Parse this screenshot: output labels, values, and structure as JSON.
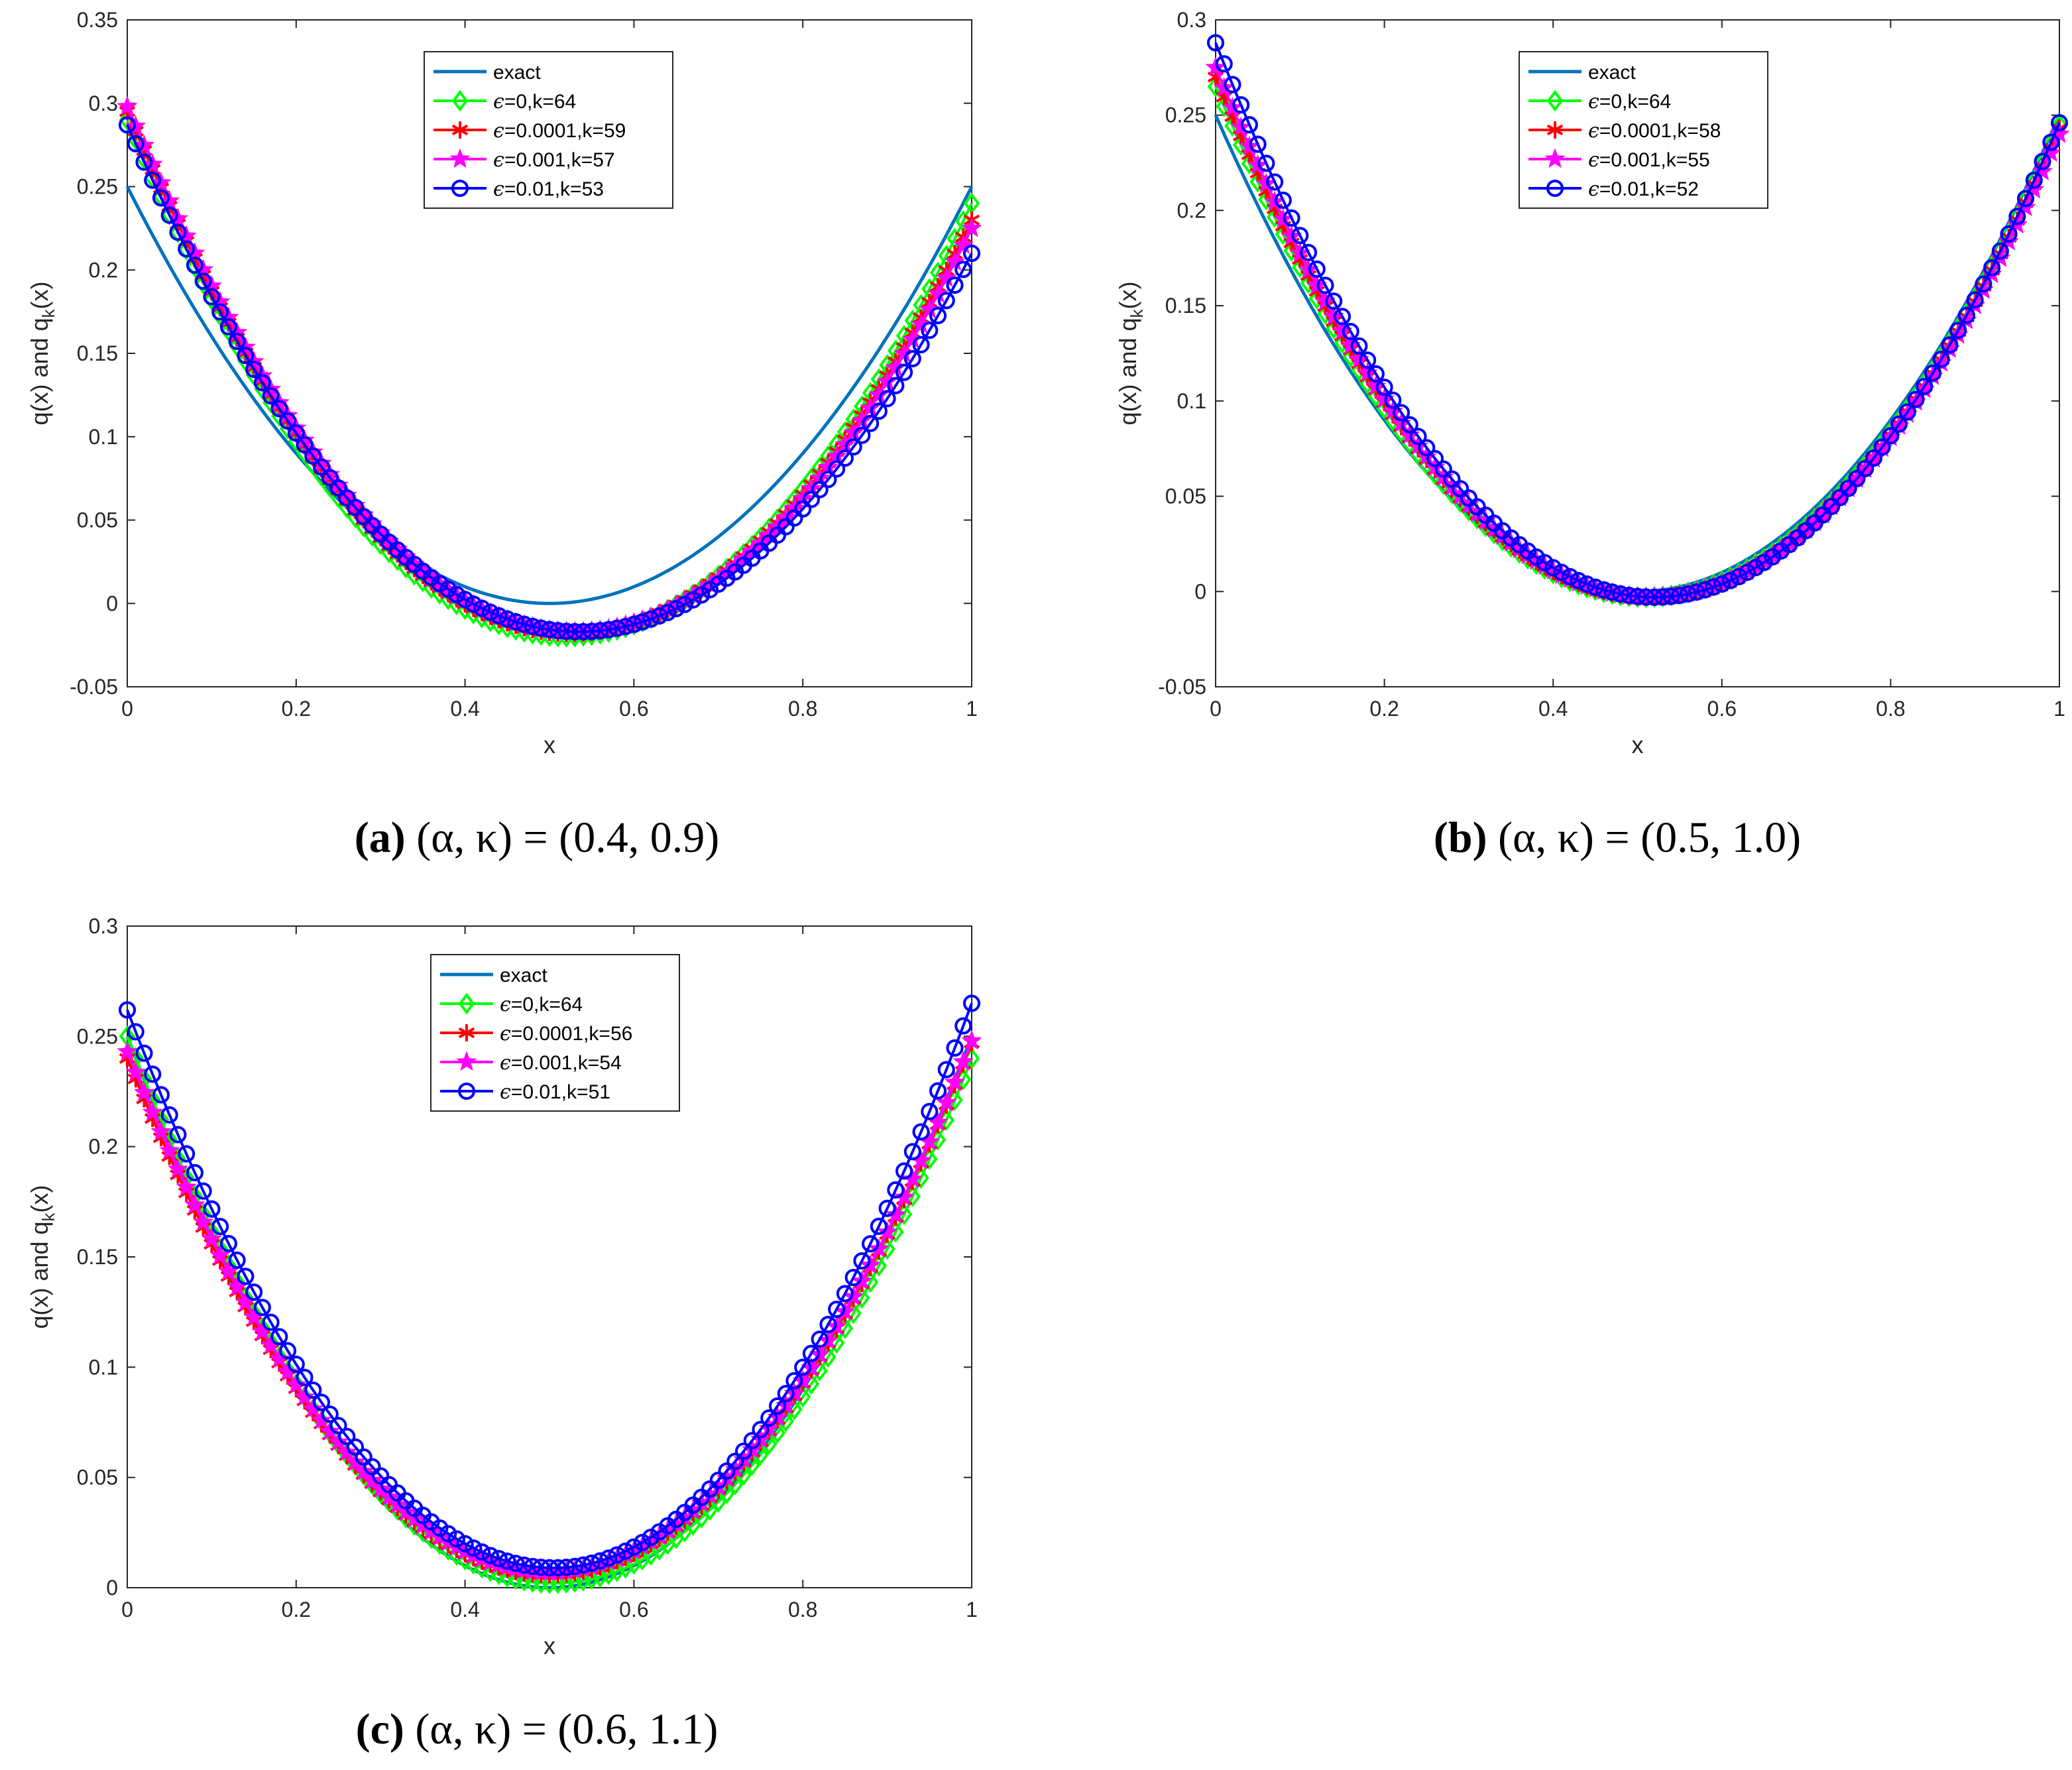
{
  "colors": {
    "exact": "#0072BD",
    "eps0": "#00FF00",
    "eps0001": "#FF0000",
    "eps001": "#FF00FF",
    "eps01": "#0000FF",
    "axis": "#262626"
  },
  "chart_data": [
    {
      "type": "line",
      "panel_id": "a",
      "caption": {
        "letter": "(a)",
        "text": " (α, κ) = (0.4, 0.9)"
      },
      "xlabel": "x",
      "ylabel": "q(x) and q",
      "ylabel_sub": "k",
      "ylabel_tail": "(x)",
      "xlim": [
        0,
        1
      ],
      "ylim": [
        -0.05,
        0.35
      ],
      "xticks": [
        0,
        0.2,
        0.4,
        0.6,
        0.8,
        1
      ],
      "xtick_labels": [
        "0",
        "0.2",
        "0.4",
        "0.6",
        "0.8",
        "1"
      ],
      "yticks": [
        -0.05,
        0,
        0.05,
        0.1,
        0.15,
        0.2,
        0.25,
        0.3,
        0.35
      ],
      "ytick_labels": [
        "-0.05",
        "0",
        "0.05",
        "0.1",
        "0.15",
        "0.2",
        "0.25",
        "0.3",
        "0.35"
      ],
      "legend_position": "top-center",
      "series": [
        {
          "name": "exact",
          "color_key": "exact",
          "marker": "none",
          "model": {
            "a": 0.25,
            "m": 0.5,
            "b": 0.25,
            "c": 0.0
          }
        },
        {
          "name": "=0,k=64",
          "eps_symbol": "ϵ",
          "color_key": "eps0",
          "marker": "diamond",
          "model": {
            "a": 0.29,
            "m": 0.52,
            "b": 0.24,
            "c": -0.02
          }
        },
        {
          "name": "=0.0001,k=59",
          "eps_symbol": "ϵ",
          "color_key": "eps0001",
          "marker": "asterisk",
          "model": {
            "a": 0.295,
            "m": 0.525,
            "b": 0.23,
            "c": -0.018
          }
        },
        {
          "name": "=0.001,k=57",
          "eps_symbol": "ϵ",
          "color_key": "eps001",
          "marker": "star",
          "model": {
            "a": 0.298,
            "m": 0.53,
            "b": 0.225,
            "c": -0.017
          }
        },
        {
          "name": "=0.01,k=53",
          "eps_symbol": "ϵ",
          "color_key": "eps01",
          "marker": "circle",
          "model": {
            "a": 0.287,
            "m": 0.535,
            "b": 0.21,
            "c": -0.017
          }
        }
      ]
    },
    {
      "type": "line",
      "panel_id": "b",
      "caption": {
        "letter": "(b)",
        "text": " (α, κ) = (0.5, 1.0)"
      },
      "xlabel": "x",
      "ylabel": "q(x) and q",
      "ylabel_sub": "k",
      "ylabel_tail": "(x)",
      "xlim": [
        0,
        1
      ],
      "ylim": [
        -0.05,
        0.3
      ],
      "xticks": [
        0,
        0.2,
        0.4,
        0.6,
        0.8,
        1
      ],
      "xtick_labels": [
        "0",
        "0.2",
        "0.4",
        "0.6",
        "0.8",
        "1"
      ],
      "yticks": [
        -0.05,
        0,
        0.05,
        0.1,
        0.15,
        0.2,
        0.25,
        0.3
      ],
      "ytick_labels": [
        "-0.05",
        "0",
        "0.05",
        "0.1",
        "0.15",
        "0.2",
        "0.25",
        "0.3"
      ],
      "legend_position": "top-center",
      "series": [
        {
          "name": "exact",
          "color_key": "exact",
          "marker": "none",
          "model": {
            "a": 0.25,
            "m": 0.5,
            "b": 0.25,
            "c": 0.0
          }
        },
        {
          "name": "=0,k=64",
          "eps_symbol": "ϵ",
          "color_key": "eps0",
          "marker": "diamond",
          "model": {
            "a": 0.265,
            "m": 0.51,
            "b": 0.245,
            "c": -0.003
          }
        },
        {
          "name": "=0.0001,k=58",
          "eps_symbol": "ϵ",
          "color_key": "eps0001",
          "marker": "asterisk",
          "model": {
            "a": 0.27,
            "m": 0.515,
            "b": 0.243,
            "c": -0.003
          }
        },
        {
          "name": "=0.001,k=55",
          "eps_symbol": "ϵ",
          "color_key": "eps001",
          "marker": "star",
          "model": {
            "a": 0.275,
            "m": 0.515,
            "b": 0.24,
            "c": -0.003
          }
        },
        {
          "name": "=0.01,k=52",
          "eps_symbol": "ϵ",
          "color_key": "eps01",
          "marker": "circle",
          "model": {
            "a": 0.288,
            "m": 0.52,
            "b": 0.246,
            "c": -0.003
          }
        }
      ]
    },
    {
      "type": "line",
      "panel_id": "c",
      "caption": {
        "letter": "(c)",
        "text": " (α, κ) = (0.6, 1.1)"
      },
      "xlabel": "x",
      "ylabel": "q(x) and q",
      "ylabel_sub": "k",
      "ylabel_tail": "(x)",
      "xlim": [
        0,
        1
      ],
      "ylim": [
        0,
        0.3
      ],
      "xticks": [
        0,
        0.2,
        0.4,
        0.6,
        0.8,
        1
      ],
      "xtick_labels": [
        "0",
        "0.2",
        "0.4",
        "0.6",
        "0.8",
        "1"
      ],
      "yticks": [
        0,
        0.05,
        0.1,
        0.15,
        0.2,
        0.25,
        0.3
      ],
      "ytick_labels": [
        "0",
        "0.05",
        "0.1",
        "0.15",
        "0.2",
        "0.25",
        "0.3"
      ],
      "legend_position": "top-center",
      "series": [
        {
          "name": "exact",
          "color_key": "exact",
          "marker": "none",
          "model": {
            "a": 0.25,
            "m": 0.5,
            "b": 0.25,
            "c": 0.0
          }
        },
        {
          "name": "=0,k=64",
          "eps_symbol": "ϵ",
          "color_key": "eps0",
          "marker": "diamond",
          "model": {
            "a": 0.25,
            "m": 0.505,
            "b": 0.24,
            "c": 0.002
          }
        },
        {
          "name": "=0.0001,k=56",
          "eps_symbol": "ϵ",
          "color_key": "eps0001",
          "marker": "asterisk",
          "model": {
            "a": 0.24,
            "m": 0.5,
            "b": 0.247,
            "c": 0.006
          }
        },
        {
          "name": "=0.001,k=54",
          "eps_symbol": "ϵ",
          "color_key": "eps001",
          "marker": "star",
          "model": {
            "a": 0.243,
            "m": 0.5,
            "b": 0.248,
            "c": 0.007
          }
        },
        {
          "name": "=0.01,k=51",
          "eps_symbol": "ϵ",
          "color_key": "eps01",
          "marker": "circle",
          "model": {
            "a": 0.262,
            "m": 0.505,
            "b": 0.265,
            "c": 0.009
          }
        }
      ]
    }
  ]
}
